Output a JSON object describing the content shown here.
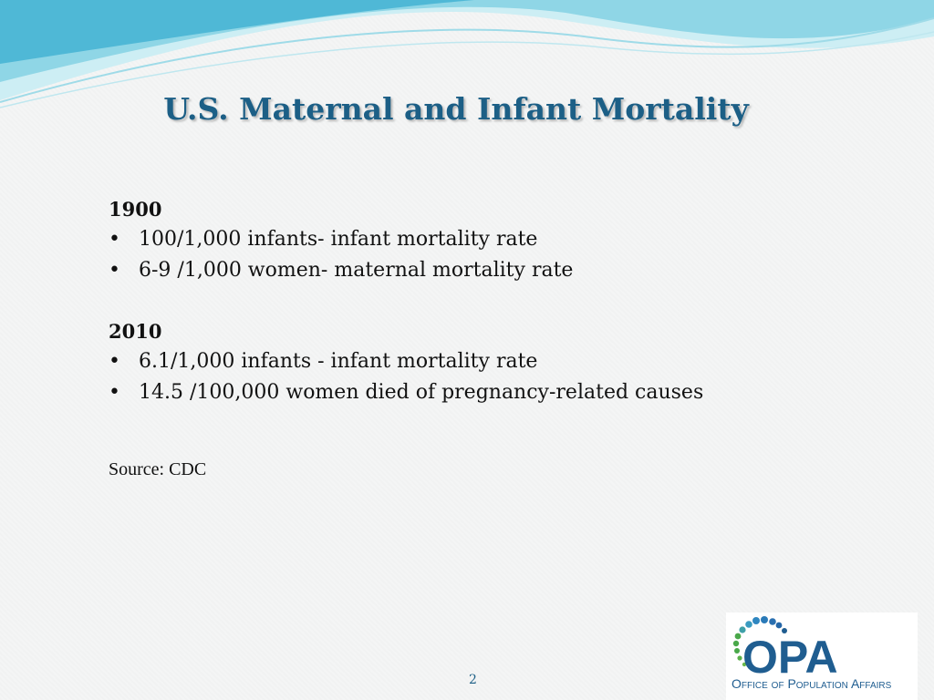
{
  "slide": {
    "title": "U.S. Maternal and Infant Mortality",
    "sections": [
      {
        "year": "1900",
        "bullets": [
          "100/1,000 infants- infant mortality rate",
          "6-9 /1,000 women- maternal mortality rate"
        ]
      },
      {
        "year": "2010",
        "bullets": [
          "6.1/1,000 infants - infant mortality rate",
          "14.5 /100,000 women died of pregnancy-related causes"
        ]
      }
    ],
    "bullet_char": "•",
    "source": "Source: CDC",
    "page_number": "2"
  },
  "logo": {
    "acronym": "OPA",
    "name": "Office of Population Affairs"
  },
  "colors": {
    "title": "#1c5f86",
    "wave_light": "#cdeef4",
    "wave_mid": "#8fd6e6",
    "wave_dark": "#4fb8d6",
    "logo_blue": "#1f5d90",
    "logo_green": "#4aa84a"
  }
}
